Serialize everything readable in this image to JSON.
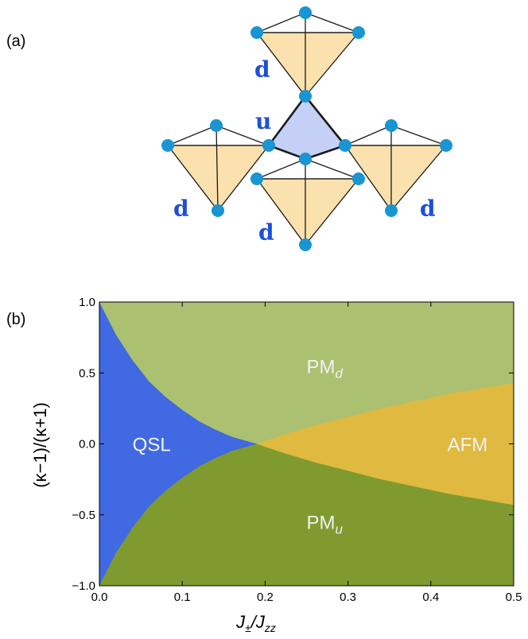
{
  "panels": {
    "a": {
      "label": "(a)"
    },
    "b": {
      "label": "(b)"
    }
  },
  "tetrahedra": {
    "up_label": "u",
    "down_label": "d",
    "up_fill": "#c5d0f6",
    "down_fill": "#fbe1ad",
    "site_color": "#1995d3"
  },
  "chart_data": {
    "type": "area",
    "title": "",
    "xlabel": {
      "main": "J",
      "sub1": "±",
      "slash": "/J",
      "sub2": "zz"
    },
    "ylabel": "(κ−1)/(κ+1)",
    "xlim": [
      0.0,
      0.5
    ],
    "ylim": [
      -1.0,
      1.0
    ],
    "x_ticks": [
      {
        "value": 0.0,
        "label": "0.0"
      },
      {
        "value": 0.1,
        "label": "0.1"
      },
      {
        "value": 0.2,
        "label": "0.2"
      },
      {
        "value": 0.3,
        "label": "0.3"
      },
      {
        "value": 0.4,
        "label": "0.4"
      },
      {
        "value": 0.5,
        "label": "0.5"
      }
    ],
    "y_ticks": [
      {
        "value": 1.0,
        "label": "1.0"
      },
      {
        "value": 0.5,
        "label": "0.5"
      },
      {
        "value": 0.0,
        "label": "0.0"
      },
      {
        "value": -0.5,
        "label": "−0.5"
      },
      {
        "value": -1.0,
        "label": "−1.0"
      }
    ],
    "critical_point": {
      "x": 0.19,
      "y": 0.0
    },
    "boundaries": {
      "qsl_upper": [
        [
          0.0,
          1.0
        ],
        [
          0.02,
          0.77
        ],
        [
          0.04,
          0.59
        ],
        [
          0.06,
          0.44
        ],
        [
          0.08,
          0.33
        ],
        [
          0.1,
          0.24
        ],
        [
          0.12,
          0.16
        ],
        [
          0.14,
          0.1
        ],
        [
          0.16,
          0.05
        ],
        [
          0.19,
          0.0
        ]
      ],
      "afm_upper": [
        [
          0.19,
          0.0
        ],
        [
          0.22,
          0.06
        ],
        [
          0.26,
          0.13
        ],
        [
          0.3,
          0.19
        ],
        [
          0.34,
          0.25
        ],
        [
          0.38,
          0.3
        ],
        [
          0.42,
          0.35
        ],
        [
          0.46,
          0.39
        ],
        [
          0.5,
          0.43
        ]
      ]
    },
    "regions": [
      {
        "name": "QSL",
        "label": "QSL",
        "color": "#4169e1",
        "label_x": 0.04,
        "label_y": 0.0
      },
      {
        "name": "PMd",
        "label_main": "PM",
        "label_sub": "d",
        "color": "#acc072",
        "label_x": 0.25,
        "label_y": 0.55
      },
      {
        "name": "PMu",
        "label_main": "PM",
        "label_sub": "u",
        "color": "#7f9b30",
        "label_x": 0.25,
        "label_y": -0.55
      },
      {
        "name": "AFM",
        "label": "AFM",
        "color": "#e0b941",
        "label_x": 0.42,
        "label_y": 0.0
      }
    ],
    "grid": false,
    "legend": "none"
  }
}
